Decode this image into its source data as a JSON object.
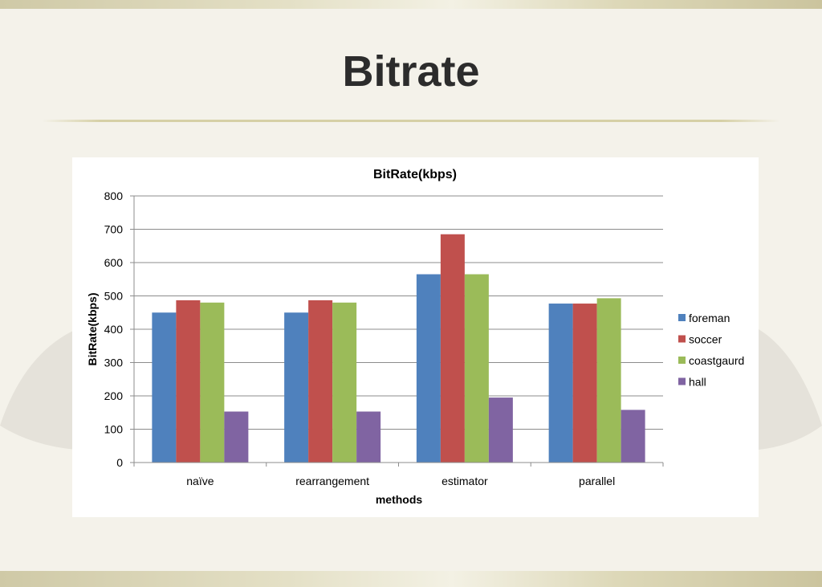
{
  "slide": {
    "title": "Bitrate"
  },
  "chart_data": {
    "type": "bar",
    "title": "BitRate(kbps)",
    "xlabel": "methods",
    "ylabel": "BitRate(kbps)",
    "ylim": [
      0,
      800
    ],
    "yticks": [
      0,
      100,
      200,
      300,
      400,
      500,
      600,
      700,
      800
    ],
    "grid": true,
    "legend_position": "right",
    "categories": [
      "naïve",
      "rearrangement",
      "estimator",
      "parallel"
    ],
    "series": [
      {
        "name": "foreman",
        "color": "#4f81bd",
        "values": [
          450,
          450,
          565,
          477
        ]
      },
      {
        "name": "soccer",
        "color": "#c0504d",
        "values": [
          487,
          487,
          685,
          477
        ]
      },
      {
        "name": "coastgaurd",
        "color": "#9bbb59",
        "values": [
          480,
          480,
          565,
          493
        ]
      },
      {
        "name": "hall",
        "color": "#8064a2",
        "values": [
          153,
          153,
          195,
          158
        ]
      }
    ]
  }
}
